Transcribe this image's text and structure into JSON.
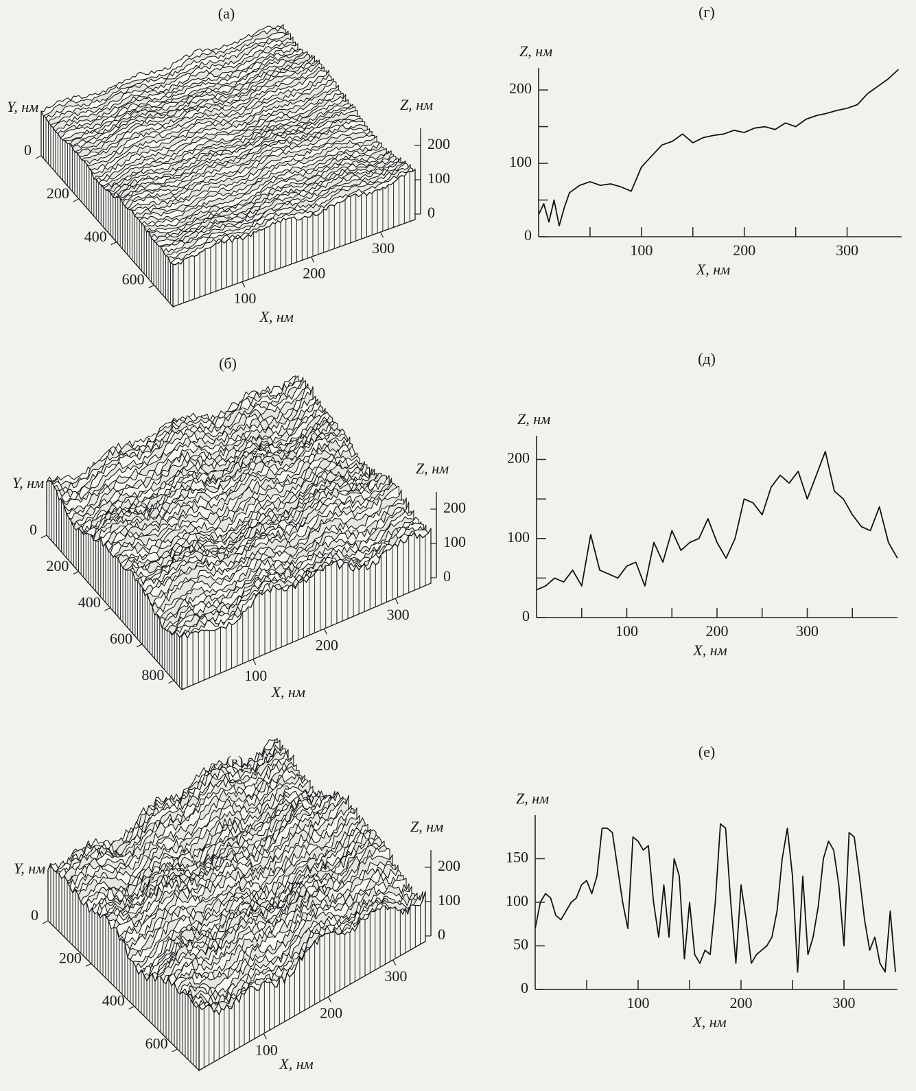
{
  "chart_data": [
    {
      "type": "surface3d",
      "title": "(а)",
      "x_label": "X, нм",
      "y_label": "Y, нм",
      "z_label": "Z, нм",
      "xlim": [
        0,
        350
      ],
      "xticks": [
        100,
        200,
        300
      ],
      "ylim": [
        0,
        700
      ],
      "yticks": [
        0,
        200,
        400,
        600
      ],
      "zlim": [
        0,
        250
      ],
      "zticks": [
        0,
        100,
        200
      ]
    },
    {
      "type": "surface3d",
      "title": "(б)",
      "x_label": "X, нм",
      "y_label": "Y, нм",
      "z_label": "Z, нм",
      "xlim": [
        0,
        350
      ],
      "xticks": [
        100,
        200,
        300
      ],
      "ylim": [
        0,
        850
      ],
      "yticks": [
        0,
        200,
        400,
        600,
        800
      ],
      "zlim": [
        0,
        250
      ],
      "zticks": [
        0,
        100,
        200
      ]
    },
    {
      "type": "surface3d",
      "title": "(в)",
      "x_label": "X, нм",
      "y_label": "Y, нм",
      "z_label": "Z, нм",
      "xlim": [
        0,
        350
      ],
      "xticks": [
        100,
        200,
        300
      ],
      "ylim": [
        0,
        700
      ],
      "yticks": [
        0,
        200,
        400,
        600
      ],
      "zlim": [
        0,
        250
      ],
      "zticks": [
        0,
        100,
        200
      ]
    },
    {
      "type": "line",
      "title": "(г)",
      "x_label": "X, нм",
      "y_label": "Z, нм",
      "xlim": [
        0,
        353
      ],
      "ylim": [
        0,
        230
      ],
      "xticks": [
        100,
        200,
        300
      ],
      "xminor_ticks": [
        50,
        150,
        250
      ],
      "yticks": [
        0,
        100,
        200
      ],
      "yminor_ticks": [
        50,
        150
      ],
      "x": [
        0,
        5,
        10,
        15,
        20,
        25,
        30,
        40,
        50,
        60,
        70,
        80,
        90,
        100,
        110,
        120,
        130,
        140,
        150,
        160,
        170,
        180,
        190,
        200,
        210,
        220,
        230,
        240,
        250,
        260,
        270,
        280,
        290,
        300,
        310,
        320,
        330,
        340,
        350
      ],
      "series": [
        {
          "color": "#111111",
          "values": [
            30,
            45,
            20,
            50,
            15,
            40,
            60,
            70,
            75,
            70,
            72,
            68,
            62,
            95,
            110,
            125,
            130,
            140,
            128,
            135,
            138,
            140,
            145,
            142,
            148,
            150,
            146,
            155,
            150,
            160,
            165,
            168,
            172,
            175,
            180,
            195,
            205,
            215,
            228
          ]
        }
      ]
    },
    {
      "type": "line",
      "title": "(д)",
      "x_label": "X, нм",
      "y_label": "Z, нм",
      "xlim": [
        0,
        400
      ],
      "ylim": [
        0,
        230
      ],
      "xticks": [
        100,
        200,
        300
      ],
      "xminor_ticks": [
        50,
        150,
        250,
        350
      ],
      "yticks": [
        0,
        100,
        200
      ],
      "yminor_ticks": [
        50,
        150
      ],
      "x": [
        0,
        10,
        20,
        30,
        40,
        50,
        60,
        70,
        80,
        90,
        100,
        110,
        120,
        130,
        140,
        150,
        160,
        170,
        180,
        190,
        200,
        210,
        220,
        230,
        240,
        250,
        260,
        270,
        280,
        290,
        300,
        310,
        320,
        330,
        340,
        350,
        360,
        370,
        380,
        390,
        400
      ],
      "series": [
        {
          "color": "#111111",
          "values": [
            35,
            40,
            50,
            45,
            60,
            40,
            105,
            60,
            55,
            50,
            65,
            70,
            40,
            95,
            70,
            110,
            85,
            95,
            100,
            125,
            95,
            75,
            100,
            150,
            145,
            130,
            165,
            180,
            170,
            185,
            150,
            180,
            210,
            160,
            150,
            130,
            115,
            110,
            140,
            95,
            75
          ]
        }
      ]
    },
    {
      "type": "line",
      "title": "(е)",
      "x_label": "X, нм",
      "y_label": "Z, нм",
      "xlim": [
        0,
        352
      ],
      "ylim": [
        0,
        200
      ],
      "xticks": [
        100,
        200,
        300
      ],
      "xminor_ticks": [
        50,
        150,
        250
      ],
      "yticks": [
        0,
        50,
        100,
        150
      ],
      "x": [
        0,
        5,
        10,
        15,
        20,
        25,
        30,
        35,
        40,
        45,
        50,
        55,
        60,
        65,
        70,
        75,
        80,
        85,
        90,
        95,
        100,
        105,
        110,
        115,
        120,
        125,
        130,
        135,
        140,
        145,
        150,
        155,
        160,
        165,
        170,
        175,
        180,
        185,
        190,
        195,
        200,
        205,
        210,
        215,
        220,
        225,
        230,
        235,
        240,
        245,
        250,
        255,
        260,
        265,
        270,
        275,
        280,
        285,
        290,
        295,
        300,
        305,
        310,
        315,
        320,
        325,
        330,
        335,
        340,
        345,
        350
      ],
      "series": [
        {
          "color": "#111111",
          "values": [
            70,
            100,
            110,
            105,
            85,
            80,
            90,
            100,
            105,
            120,
            125,
            110,
            130,
            185,
            185,
            180,
            140,
            100,
            70,
            175,
            170,
            160,
            165,
            100,
            60,
            120,
            60,
            150,
            130,
            35,
            100,
            40,
            30,
            45,
            40,
            100,
            190,
            185,
            100,
            30,
            120,
            80,
            30,
            40,
            45,
            50,
            60,
            90,
            150,
            185,
            130,
            20,
            130,
            40,
            60,
            95,
            150,
            170,
            160,
            120,
            50,
            180,
            175,
            130,
            80,
            45,
            60,
            30,
            20,
            90,
            20
          ]
        }
      ]
    }
  ]
}
